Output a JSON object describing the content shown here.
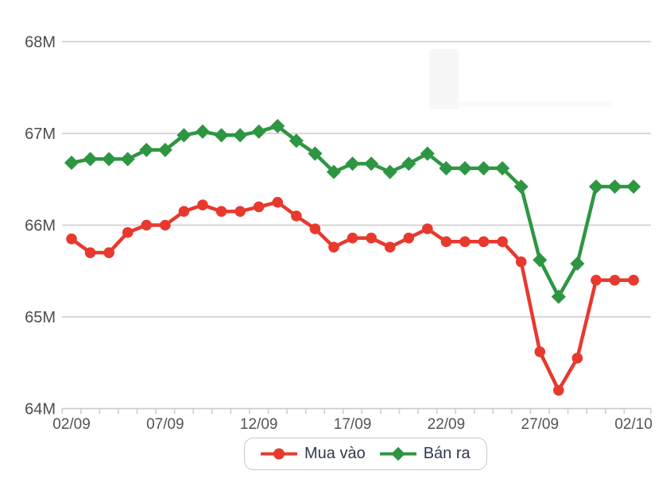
{
  "chart_data": {
    "type": "line",
    "x": [
      "02/09",
      "03/09",
      "04/09",
      "05/09",
      "06/09",
      "07/09",
      "08/09",
      "09/09",
      "10/09",
      "11/09",
      "12/09",
      "13/09",
      "14/09",
      "15/09",
      "16/09",
      "17/09",
      "18/09",
      "19/09",
      "20/09",
      "21/09",
      "22/09",
      "23/09",
      "24/09",
      "25/09",
      "26/09",
      "27/09",
      "28/09",
      "29/09",
      "30/09",
      "01/10",
      "02/10"
    ],
    "x_axis_labels_shown": [
      "02/09",
      "07/09",
      "12/09",
      "17/09",
      "22/09",
      "27/09",
      "02/10"
    ],
    "x_label_every": 5,
    "series": [
      {
        "name": "Mua vào",
        "color": "#e8392e",
        "marker": "circle",
        "values": [
          65.85,
          65.7,
          65.7,
          65.92,
          66.0,
          66.0,
          66.15,
          66.22,
          66.15,
          66.15,
          66.2,
          66.25,
          66.1,
          65.96,
          65.76,
          65.86,
          65.86,
          65.76,
          65.86,
          65.96,
          65.82,
          65.82,
          65.82,
          65.82,
          65.6,
          64.62,
          64.2,
          64.55,
          65.4,
          65.4,
          65.4
        ]
      },
      {
        "name": "Bán ra",
        "color": "#2e9642",
        "marker": "diamond",
        "values": [
          66.68,
          66.72,
          66.72,
          66.72,
          66.82,
          66.82,
          66.98,
          67.02,
          66.98,
          66.98,
          67.02,
          67.08,
          66.92,
          66.78,
          66.58,
          66.67,
          66.67,
          66.58,
          66.67,
          66.78,
          66.62,
          66.62,
          66.62,
          66.62,
          66.42,
          65.62,
          65.22,
          65.58,
          66.42,
          66.42,
          66.42
        ]
      }
    ],
    "ylim": [
      64,
      68
    ],
    "yticks": [
      {
        "value": 64,
        "label": "64M"
      },
      {
        "value": 65,
        "label": "65M"
      },
      {
        "value": 66,
        "label": "66M"
      },
      {
        "value": 67,
        "label": "67M"
      },
      {
        "value": 68,
        "label": "68M"
      }
    ],
    "grid": "horizontal",
    "legend_position": "bottom-center",
    "title": "",
    "xlabel": "",
    "ylabel": ""
  },
  "colors": {
    "grid_line": "#d2d2d2",
    "axis_line": "#cccccc",
    "axis_text": "#4d4d4d"
  }
}
